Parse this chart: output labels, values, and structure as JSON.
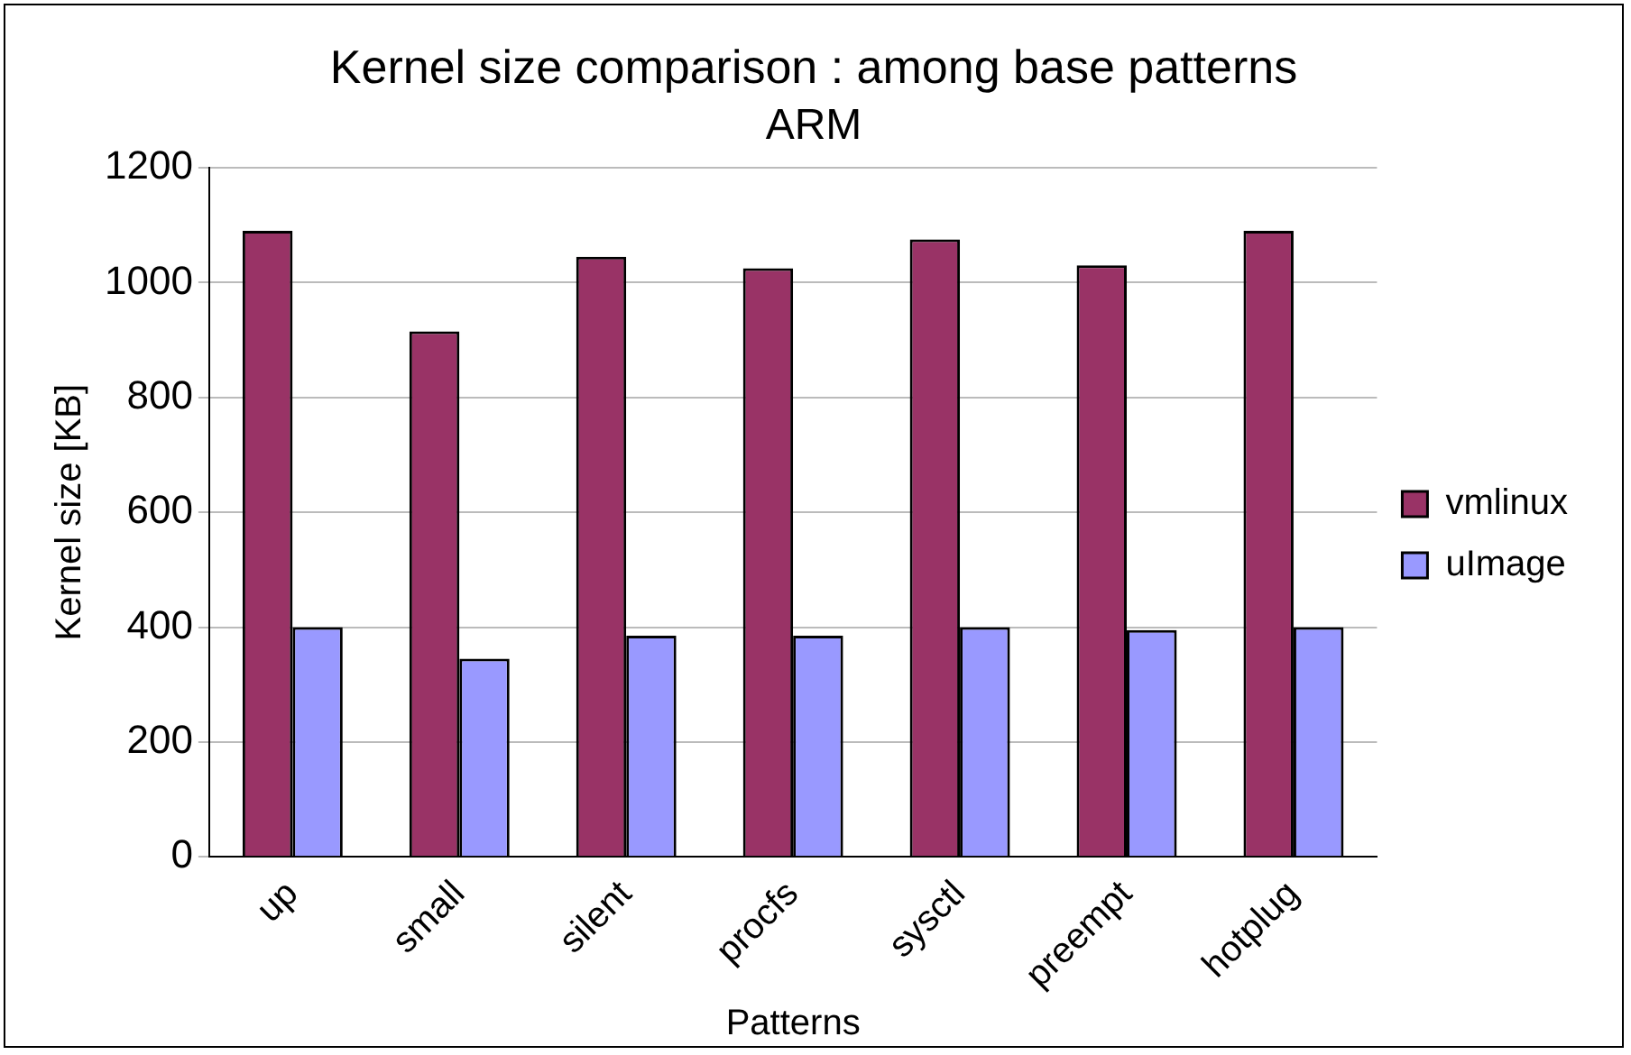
{
  "chart_data": {
    "type": "bar",
    "title": "Kernel size comparison : among base patterns",
    "subtitle": "ARM",
    "xlabel": "Patterns",
    "ylabel": "Kernel size [KB]",
    "categories": [
      "up",
      "small",
      "silent",
      "procfs",
      "sysctl",
      "preempt",
      "hotplug"
    ],
    "series": [
      {
        "name": "vmlinux",
        "color": "#993366",
        "values": [
          1090,
          915,
          1045,
          1025,
          1075,
          1030,
          1090
        ]
      },
      {
        "name": "uImage",
        "color": "#9999ff",
        "values": [
          400,
          345,
          385,
          385,
          400,
          395,
          400
        ]
      }
    ],
    "ylim": [
      0,
      1200
    ],
    "yticks": [
      0,
      200,
      400,
      600,
      800,
      1000,
      1200
    ],
    "grid": "y",
    "legend": "right"
  }
}
